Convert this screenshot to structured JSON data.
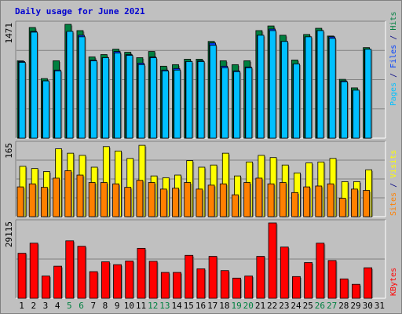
{
  "title": "Daily usage for June 2021",
  "colors": {
    "background": "#c0c0c0",
    "title": "#0000d0",
    "hits": "#008040",
    "files": "#0040ff",
    "pages": "#00c0ff",
    "visits": "#ffff00",
    "sites": "#ff8000",
    "kbytes": "#ff0000",
    "weekend_label": "#008040",
    "weekday_label": "#000000",
    "separator": "#000080"
  },
  "chart_data": [
    {
      "type": "bar",
      "panel": "top",
      "y_max_label": "1471",
      "ylim": [
        0,
        1471
      ],
      "side_labels": [
        "Pages",
        "Files",
        "Hits"
      ],
      "categories": [
        "1",
        "2",
        "3",
        "4",
        "5",
        "6",
        "7",
        "8",
        "9",
        "10",
        "11",
        "12",
        "13",
        "14",
        "15",
        "16",
        "17",
        "18",
        "19",
        "20",
        "21",
        "22",
        "23",
        "24",
        "25",
        "26",
        "27",
        "28",
        "29",
        "30",
        "31"
      ],
      "series": [
        {
          "name": "Hits",
          "values": [
            1000,
            1430,
            770,
            1000,
            1471,
            1390,
            1050,
            1080,
            1150,
            1110,
            1040,
            1120,
            930,
            950,
            1020,
            1020,
            1250,
            1000,
            950,
            1000,
            1390,
            1450,
            1330,
            1010,
            1340,
            1420,
            1320,
            760,
            650,
            1170,
            0
          ]
        },
        {
          "name": "Files",
          "values": [
            990,
            1380,
            740,
            880,
            1370,
            1330,
            1010,
            1040,
            1120,
            1080,
            970,
            1050,
            880,
            900,
            990,
            1000,
            1230,
            930,
            870,
            920,
            1330,
            1410,
            1250,
            960,
            1310,
            1390,
            1310,
            740,
            620,
            1150,
            0
          ]
        },
        {
          "name": "Pages",
          "values": [
            980,
            1370,
            740,
            870,
            1380,
            1310,
            1000,
            1040,
            1100,
            1070,
            950,
            1040,
            870,
            880,
            990,
            990,
            1200,
            910,
            860,
            910,
            1330,
            1390,
            1250,
            960,
            1310,
            1390,
            1290,
            730,
            620,
            1150,
            0
          ]
        }
      ]
    },
    {
      "type": "bar",
      "panel": "middle",
      "y_max_label": "165",
      "ylim": [
        0,
        165
      ],
      "side_labels": [
        "Sites",
        "Visits"
      ],
      "categories": [
        "1",
        "2",
        "3",
        "4",
        "5",
        "6",
        "7",
        "8",
        "9",
        "10",
        "11",
        "12",
        "13",
        "14",
        "15",
        "16",
        "17",
        "18",
        "19",
        "20",
        "21",
        "22",
        "23",
        "24",
        "25",
        "26",
        "27",
        "28",
        "29",
        "30",
        "31"
      ],
      "series": [
        {
          "name": "Visits",
          "values": [
            115,
            110,
            103,
            155,
            145,
            140,
            113,
            160,
            150,
            133,
            163,
            93,
            89,
            95,
            128,
            113,
            118,
            145,
            93,
            125,
            140,
            135,
            118,
            100,
            123,
            125,
            133,
            80,
            80,
            107,
            0
          ]
        },
        {
          "name": "Sites",
          "values": [
            68,
            75,
            67,
            88,
            105,
            95,
            78,
            78,
            75,
            67,
            83,
            78,
            63,
            65,
            78,
            63,
            72,
            75,
            50,
            78,
            88,
            75,
            78,
            55,
            68,
            70,
            75,
            42,
            63,
            60,
            0
          ]
        }
      ]
    },
    {
      "type": "bar",
      "panel": "bottom",
      "y_max_label": "29115",
      "ylim": [
        0,
        29115
      ],
      "side_labels": [
        "KBytes"
      ],
      "categories": [
        "1",
        "2",
        "3",
        "4",
        "5",
        "6",
        "7",
        "8",
        "9",
        "10",
        "11",
        "12",
        "13",
        "14",
        "15",
        "16",
        "17",
        "18",
        "19",
        "20",
        "21",
        "22",
        "23",
        "24",
        "25",
        "26",
        "27",
        "28",
        "29",
        "30",
        "31"
      ],
      "series": [
        {
          "name": "KBytes",
          "values": [
            17400,
            21300,
            8600,
            12400,
            22200,
            20100,
            10300,
            14100,
            13000,
            14400,
            19300,
            14300,
            10000,
            10000,
            16600,
            11400,
            16200,
            10700,
            7800,
            8600,
            16200,
            29115,
            19800,
            8400,
            13800,
            21300,
            14600,
            7500,
            5400,
            11800,
            0
          ]
        }
      ]
    }
  ],
  "weekend_days": [
    "5",
    "6",
    "12",
    "13",
    "19",
    "20",
    "26",
    "27"
  ]
}
